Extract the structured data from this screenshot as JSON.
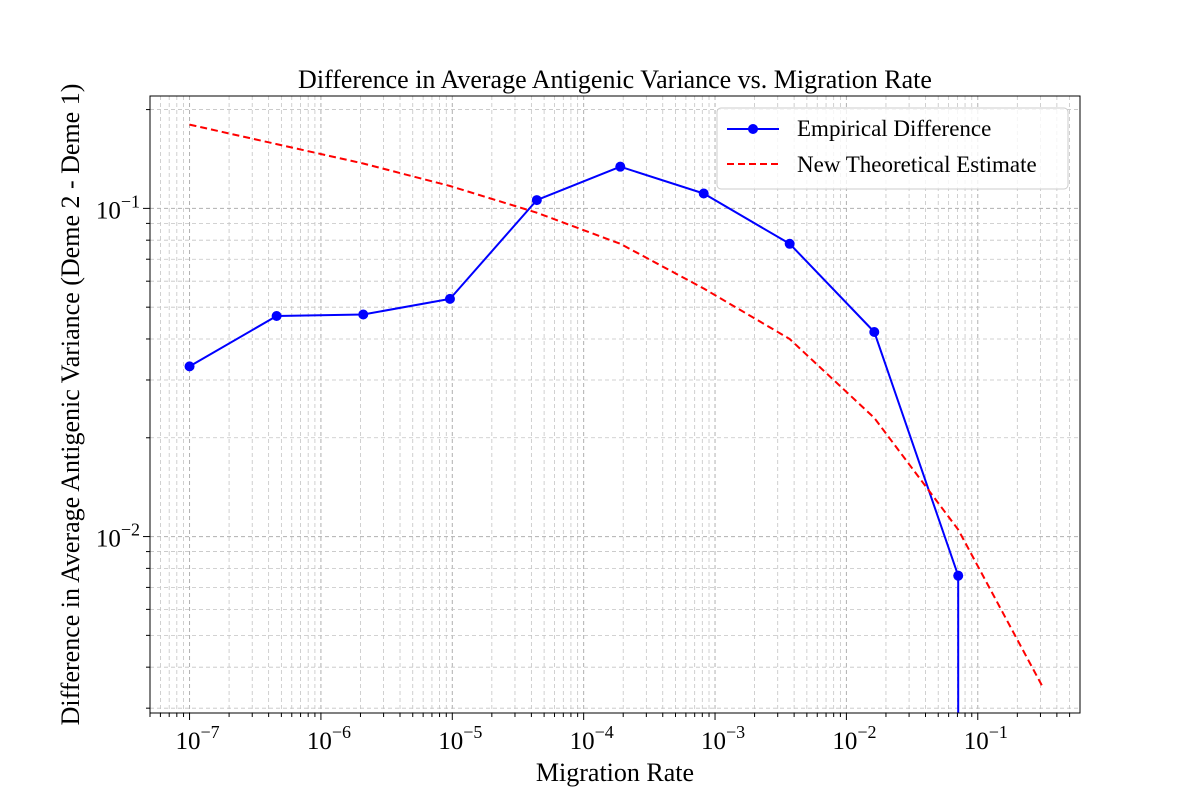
{
  "chart_data": {
    "type": "line",
    "title": "Difference in Average Antigenic Variance vs. Migration Rate",
    "xlabel": "Migration Rate",
    "ylabel": "Difference in Average Antigenic Variance (Deme 2 - Deme 1)",
    "x_scale": "log",
    "y_scale": "log",
    "xlim": [
      5e-08,
      0.6
    ],
    "ylim": [
      0.0029,
      0.22
    ],
    "x_ticks": [
      {
        "value": 1e-07,
        "base": "10",
        "exp": "−7"
      },
      {
        "value": 1e-06,
        "base": "10",
        "exp": "−6"
      },
      {
        "value": 1e-05,
        "base": "10",
        "exp": "−5"
      },
      {
        "value": 0.0001,
        "base": "10",
        "exp": "−4"
      },
      {
        "value": 0.001,
        "base": "10",
        "exp": "−3"
      },
      {
        "value": 0.01,
        "base": "10",
        "exp": "−2"
      },
      {
        "value": 0.1,
        "base": "10",
        "exp": "−1"
      }
    ],
    "y_ticks": [
      {
        "value": 0.01,
        "base": "10",
        "exp": "−2"
      },
      {
        "value": 0.1,
        "base": "10",
        "exp": "−1"
      }
    ],
    "grid": true,
    "legend_position": "top-right",
    "series": [
      {
        "name": "Empirical Difference",
        "color": "#0000ff",
        "style": "solid",
        "marker": "circle",
        "x": [
          1e-07,
          4.6e-07,
          2.1e-06,
          9.6e-06,
          4.4e-05,
          0.00019,
          0.00082,
          0.0037,
          0.0163,
          0.071,
          0.071
        ],
        "y": [
          0.033,
          0.047,
          0.0475,
          0.053,
          0.106,
          0.134,
          0.111,
          0.078,
          0.042,
          0.0076,
          0.0029
        ],
        "marker_count": 10
      },
      {
        "name": "New Theoretical Estimate",
        "color": "#ff0000",
        "style": "dashed",
        "marker": "none",
        "x": [
          1e-07,
          4.6e-07,
          2.1e-06,
          9.6e-06,
          4.4e-05,
          0.00019,
          0.00082,
          0.0037,
          0.0163,
          0.071,
          0.31
        ],
        "y": [
          0.18,
          0.157,
          0.137,
          0.117,
          0.097,
          0.078,
          0.057,
          0.04,
          0.023,
          0.0105,
          0.0035
        ]
      }
    ]
  }
}
